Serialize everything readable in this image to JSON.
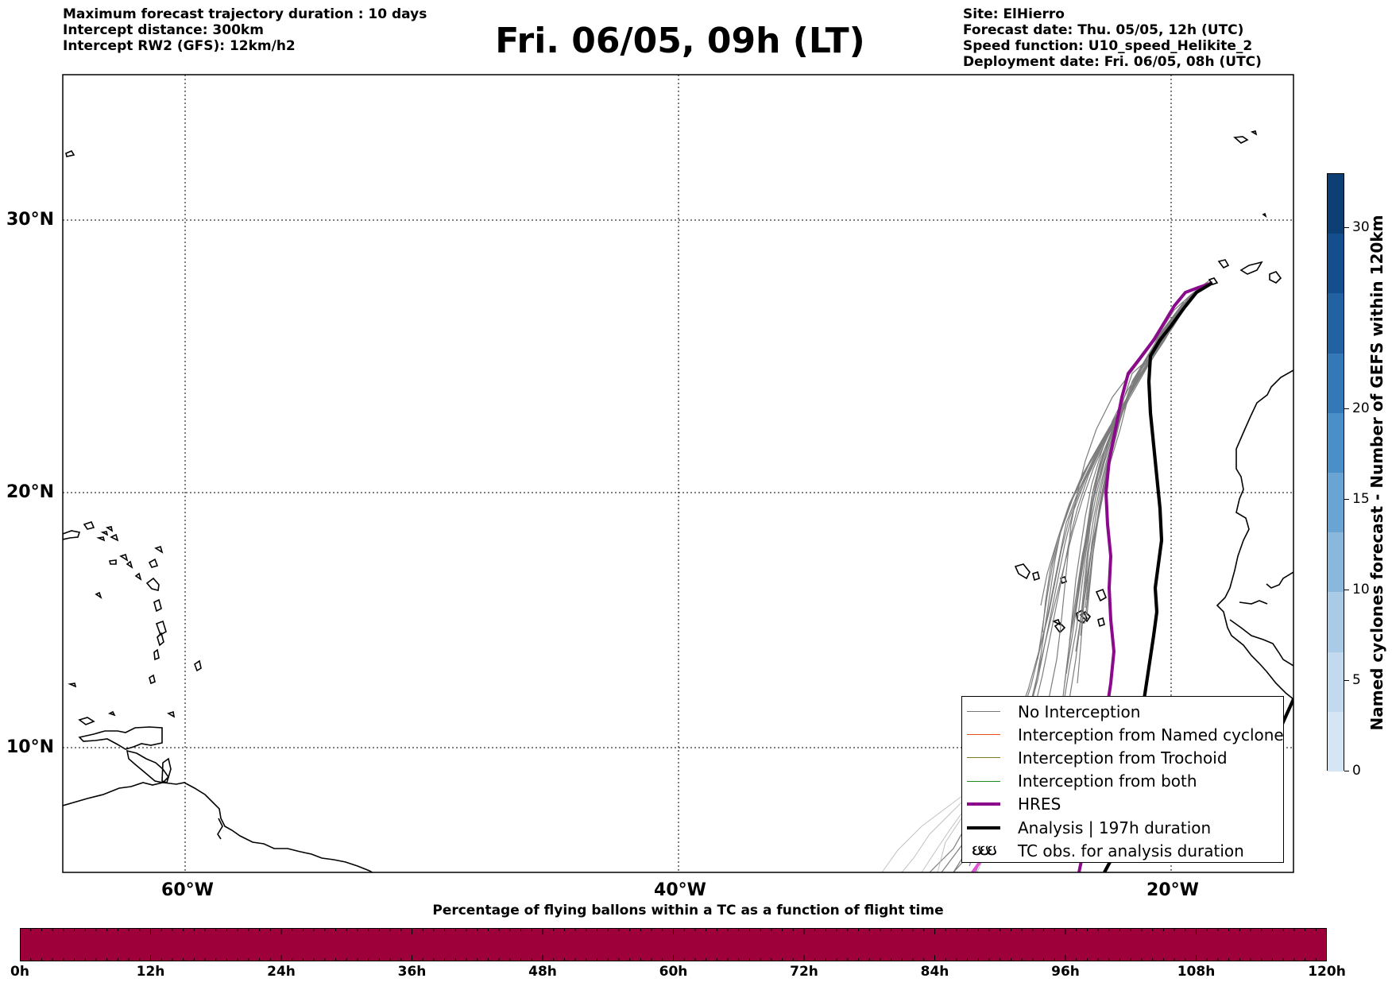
{
  "header": {
    "left_lines": [
      "Maximum forecast trajectory duration : 10 days",
      "Intercept distance: 300km",
      "Intercept RW2 (GFS):  12km/h2"
    ],
    "title": "Fri. 06/05, 09h (LT)",
    "right_lines": [
      "Site: ElHierro",
      "Forecast date: Thu. 05/05, 12h (UTC)",
      "Speed function: U10_speed_Helikite_2",
      "Deployment date: Fri. 06/05, 08h (UTC)"
    ]
  },
  "map": {
    "lat_labels": [
      "30°N",
      "20°N",
      "10°N"
    ],
    "lon_labels": [
      "60°W",
      "40°W",
      "20°W"
    ],
    "colors": {
      "no_interception": "#777777",
      "named_cyclone": "#e8501a",
      "trochoid": "#7a7a1e",
      "both": "#1e8a1e",
      "hres": "#8b0a8b",
      "analysis": "#000000",
      "coast": "#000000"
    }
  },
  "legend": {
    "items": [
      {
        "label": "No Interception",
        "color": "#777777",
        "width": 1
      },
      {
        "label": "Interception from Named cyclone",
        "color": "#e8501a",
        "width": 1
      },
      {
        "label": "Interception from Trochoid",
        "color": "#7a7a1e",
        "width": 1
      },
      {
        "label": "Interception from both",
        "color": "#1e8a1e",
        "width": 1
      },
      {
        "label": "HRES",
        "color": "#8b0a8b",
        "width": 4
      },
      {
        "label": "Analysis | 197h duration",
        "color": "#000000",
        "width": 4
      }
    ],
    "tc_symbol": "ઇઇઇ",
    "tc_label": "TC obs. for analysis duration"
  },
  "colorbar_bottom": {
    "title": "Percentage of flying ballons within a TC as a function of flight time",
    "ticks": [
      "0h",
      "12h",
      "24h",
      "36h",
      "48h",
      "60h",
      "72h",
      "84h",
      "96h",
      "108h",
      "120h"
    ],
    "color": "#9e0039"
  },
  "colorbar_right": {
    "title": "Named cyclones forecast - Number of GEFS within 120km",
    "ticks": [
      "0",
      "5",
      "10",
      "15",
      "20",
      "30"
    ],
    "colors": [
      "#d6e5f3",
      "#c2d9ee",
      "#a9cbe6",
      "#8ab8dc",
      "#6aa4d2",
      "#4a8fc7",
      "#3478b8",
      "#2262a3",
      "#154e8c",
      "#0d3f75"
    ]
  }
}
